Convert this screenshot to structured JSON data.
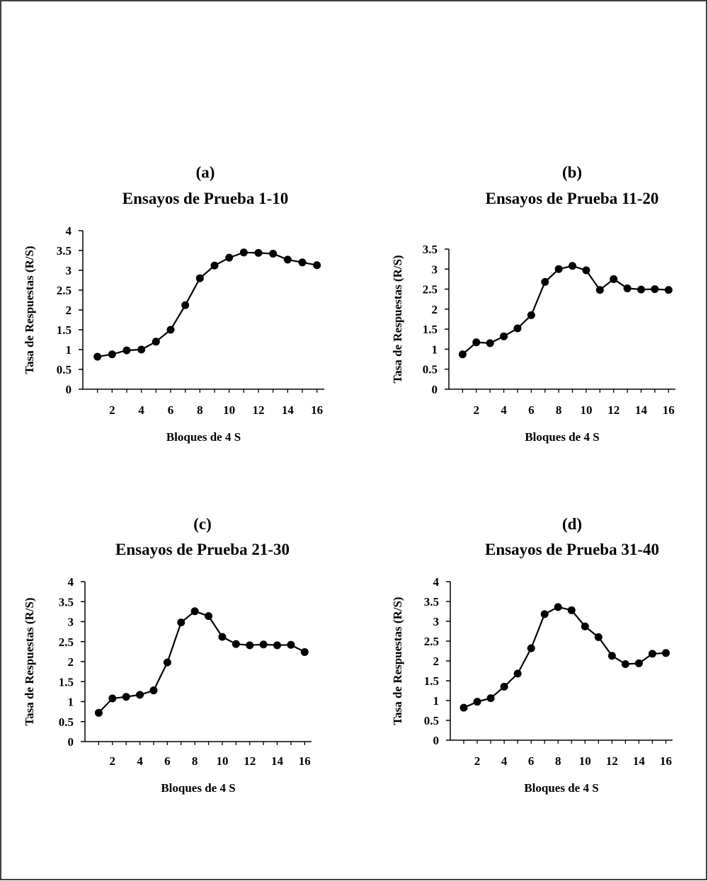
{
  "chart_data": [
    {
      "type": "line",
      "panel": "(a)",
      "title": "Ensayos de Prueba 1-10",
      "xlabel": "Bloques de 4 S",
      "ylabel": "Tasa de Respuestas (R/S)",
      "xlim": [
        0,
        16.5
      ],
      "ylim": [
        0,
        4
      ],
      "xticks": [
        2,
        4,
        6,
        8,
        10,
        12,
        14,
        16
      ],
      "yticks": [
        0,
        0.5,
        1,
        1.5,
        2,
        2.5,
        3,
        3.5,
        4
      ],
      "ytick_labels": [
        "0",
        "0.5",
        "1",
        "1.5",
        "2",
        "2.5",
        "3",
        "3.5",
        "4"
      ],
      "grid": false,
      "x": [
        1,
        2,
        3,
        4,
        5,
        6,
        7,
        8,
        9,
        10,
        11,
        12,
        13,
        14,
        15,
        16
      ],
      "values": [
        0.82,
        0.88,
        0.98,
        1.0,
        1.2,
        1.5,
        2.12,
        2.8,
        3.12,
        3.32,
        3.45,
        3.44,
        3.42,
        3.27,
        3.2,
        3.13
      ]
    },
    {
      "type": "line",
      "panel": "(b)",
      "title": "Ensayos de Prueba 11-20",
      "xlabel": "Bloques de 4 S",
      "ylabel": "Tasa de Respuestas (R/S)",
      "xlim": [
        0,
        16.5
      ],
      "ylim": [
        0,
        3.5
      ],
      "xticks": [
        2,
        4,
        6,
        8,
        10,
        12,
        14,
        16
      ],
      "yticks": [
        0,
        0.5,
        1,
        1.5,
        2,
        2.5,
        3,
        3.5
      ],
      "ytick_labels": [
        "0",
        "0.5",
        "1",
        "1.5",
        "2",
        "2.5",
        "3",
        "3.5"
      ],
      "grid": false,
      "x": [
        1,
        2,
        3,
        4,
        5,
        6,
        7,
        8,
        9,
        10,
        11,
        12,
        13,
        14,
        15,
        16
      ],
      "values": [
        0.87,
        1.17,
        1.15,
        1.32,
        1.52,
        1.85,
        2.68,
        3.0,
        3.08,
        2.97,
        2.48,
        2.75,
        2.52,
        2.49,
        2.5,
        2.48
      ]
    },
    {
      "type": "line",
      "panel": "(c)",
      "title": "Ensayos de Prueba 21-30",
      "xlabel": "Bloques de 4 S",
      "ylabel": "Tasa de Respuestas (R/S)",
      "xlim": [
        0,
        16.5
      ],
      "ylim": [
        0,
        4
      ],
      "xticks": [
        2,
        4,
        6,
        8,
        10,
        12,
        14,
        16
      ],
      "yticks": [
        0,
        0.5,
        1,
        1.5,
        2,
        2.5,
        3,
        3.5,
        4
      ],
      "ytick_labels": [
        "0",
        "0.5",
        "1",
        "1.5",
        "2",
        "2.5",
        "3",
        "3.5",
        "4"
      ],
      "grid": false,
      "x": [
        1,
        2,
        3,
        4,
        5,
        6,
        7,
        8,
        9,
        10,
        11,
        12,
        13,
        14,
        15,
        16
      ],
      "values": [
        0.72,
        1.08,
        1.12,
        1.17,
        1.28,
        1.98,
        2.98,
        3.26,
        3.14,
        2.62,
        2.44,
        2.41,
        2.43,
        2.41,
        2.42,
        2.24
      ]
    },
    {
      "type": "line",
      "panel": "(d)",
      "title": "Ensayos de Prueba 31-40",
      "xlabel": "Bloques de 4 S",
      "ylabel": "Tasa de Respuestas (R/S)",
      "xlim": [
        0,
        16.5
      ],
      "ylim": [
        0,
        4
      ],
      "xticks": [
        2,
        4,
        6,
        8,
        10,
        12,
        14,
        16
      ],
      "yticks": [
        0,
        0.5,
        1,
        1.5,
        2,
        2.5,
        3,
        3.5,
        4
      ],
      "ytick_labels": [
        "0",
        "0.5",
        "1",
        "1.5",
        "2",
        "2.5",
        "3",
        "3.5",
        "4"
      ],
      "grid": false,
      "x": [
        1,
        2,
        3,
        4,
        5,
        6,
        7,
        8,
        9,
        10,
        11,
        12,
        13,
        14,
        15,
        16
      ],
      "values": [
        0.82,
        0.97,
        1.06,
        1.35,
        1.68,
        2.32,
        3.18,
        3.36,
        3.28,
        2.87,
        2.6,
        2.13,
        1.92,
        1.94,
        2.18,
        2.2
      ]
    }
  ],
  "colors": {
    "line": "#000000",
    "marker": "#000000",
    "frame": "#000000"
  }
}
